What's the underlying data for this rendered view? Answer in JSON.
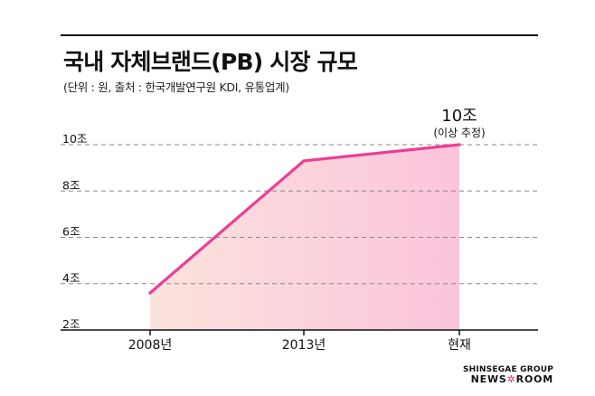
{
  "header": {
    "title": "국내 자체브랜드(PB) 시장 규모",
    "subtitle": "(단위 : 원, 출처 : 한국개발연구원 KDI, 유통업계)"
  },
  "brand": {
    "top": "SHINSEGAE GROUP",
    "bottom_left": "NEWS",
    "bottom_right": "ROOM",
    "star": "✲"
  },
  "colors": {
    "line": "#ee3d96",
    "fill_start": "#fbe3dc",
    "fill_end": "#fbc4dc"
  },
  "chart_data": {
    "type": "area",
    "title": "국내 자체브랜드(PB) 시장 규모",
    "xlabel": "",
    "ylabel": "",
    "categories": [
      "2008년",
      "2013년",
      "현재"
    ],
    "values": [
      3.6,
      9.3,
      10
    ],
    "ylim": [
      2,
      10
    ],
    "yticks": [
      2,
      4,
      6,
      8,
      10
    ],
    "ytick_labels": [
      "2조",
      "4조",
      "6조",
      "8조",
      "10조"
    ],
    "grid": true,
    "annotation": {
      "label": "10조",
      "sublabel": "(이상 추정)",
      "index": 2
    }
  }
}
